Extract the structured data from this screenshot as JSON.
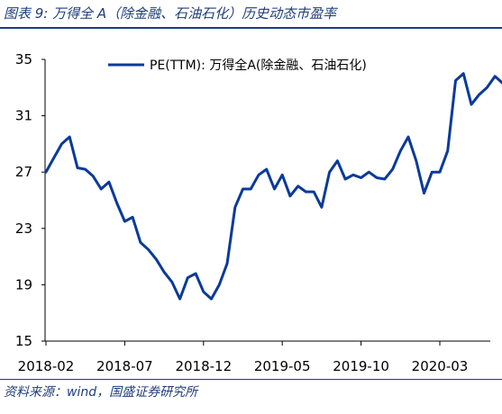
{
  "figure": {
    "title": "图表 9:  万得全 A（除金融、石油石化）历史动态市盈率",
    "source": "资料来源：wind，国盛证券研究所"
  },
  "colors": {
    "line": "#0a3a9a",
    "text_accent": "#1f3d7a"
  },
  "chart_data": {
    "type": "line",
    "title": "",
    "xlabel": "",
    "ylabel": "",
    "ylim": [
      15,
      35
    ],
    "yticks": [
      15,
      19,
      23,
      27,
      31,
      35
    ],
    "xticks": [
      "2018-02",
      "2018-07",
      "2018-12",
      "2019-05",
      "2019-10",
      "2020-03"
    ],
    "grid": false,
    "legend_position": "top",
    "series": [
      {
        "name": "PE(TTM):  万得全A(除金融、石油石化)",
        "x": [
          "2018-02",
          "2018-02",
          "2018-03",
          "2018-03",
          "2018-04",
          "2018-04",
          "2018-05",
          "2018-05",
          "2018-06",
          "2018-06",
          "2018-07",
          "2018-07",
          "2018-08",
          "2018-08",
          "2018-09",
          "2018-09",
          "2018-10",
          "2018-10",
          "2018-11",
          "2018-11",
          "2018-12",
          "2018-12",
          "2019-01",
          "2019-01",
          "2019-02",
          "2019-02",
          "2019-03",
          "2019-03",
          "2019-04",
          "2019-04",
          "2019-05",
          "2019-05",
          "2019-06",
          "2019-06",
          "2019-07",
          "2019-07",
          "2019-08",
          "2019-08",
          "2019-09",
          "2019-09",
          "2019-10",
          "2019-10",
          "2019-11",
          "2019-11",
          "2019-12",
          "2019-12",
          "2020-01",
          "2020-01",
          "2020-02",
          "2020-02",
          "2020-03",
          "2020-03",
          "2020-04",
          "2020-04",
          "2020-05",
          "2020-05",
          "2020-06",
          "2020-06",
          "2020-07",
          "2020-07"
        ],
        "values": [
          27.0,
          28.0,
          29.0,
          29.5,
          27.3,
          27.2,
          26.7,
          25.8,
          26.3,
          24.8,
          23.5,
          23.8,
          22.0,
          21.5,
          20.8,
          19.9,
          19.2,
          18.0,
          19.5,
          19.8,
          18.5,
          18.0,
          19.0,
          20.5,
          24.5,
          25.8,
          25.8,
          26.8,
          27.2,
          25.8,
          26.8,
          25.3,
          26.0,
          25.6,
          25.6,
          24.5,
          27.0,
          27.8,
          26.5,
          26.8,
          26.6,
          27.0,
          26.6,
          26.5,
          27.2,
          28.5,
          29.5,
          27.8,
          25.5,
          27.0,
          27.0,
          28.5,
          33.5,
          34.0,
          31.8,
          32.5,
          33.0,
          33.8,
          33.3,
          33.8
        ]
      }
    ]
  }
}
